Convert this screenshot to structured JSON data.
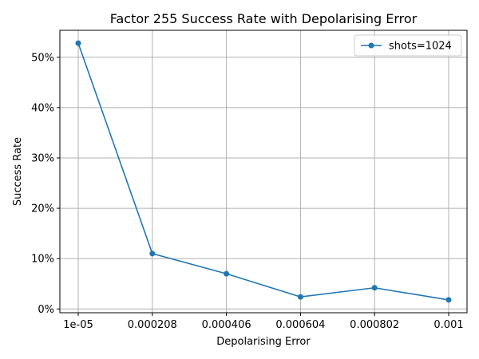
{
  "chart_data": {
    "type": "line",
    "title": "Factor 255 Success Rate with Depolarising Error",
    "xlabel": "Depolarising Error",
    "ylabel": "Success Rate",
    "categories": [
      "1e-05",
      "0.000208",
      "0.000406",
      "0.000604",
      "0.000802",
      "0.001"
    ],
    "series": [
      {
        "name": "shots=1024",
        "values": [
          0.528,
          0.11,
          0.07,
          0.024,
          0.042,
          0.018
        ],
        "color": "#1f77b4",
        "marker": "circle"
      }
    ],
    "yticks": [
      0,
      0.1,
      0.2,
      0.3,
      0.4,
      0.5
    ],
    "ytick_labels": [
      "0%",
      "10%",
      "20%",
      "30%",
      "40%",
      "50%"
    ],
    "ylim": [
      -0.0075,
      0.5535
    ],
    "grid": true,
    "legend_position": "top-right"
  }
}
